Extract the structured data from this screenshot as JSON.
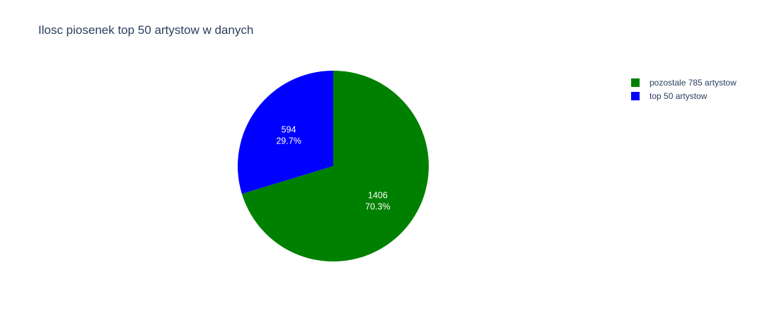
{
  "chart_data": {
    "type": "pie",
    "title": "Ilosc piosenek top 50 artystow w danych",
    "slices": [
      {
        "label": "pozostale 785 artystow",
        "value": 1406,
        "value_text": "1406",
        "percent_text": "70.3%",
        "color": "#008000"
      },
      {
        "label": "top 50 artystow",
        "value": 594,
        "value_text": "594",
        "percent_text": "29.7%",
        "color": "#0000ff"
      }
    ],
    "legend_position": "top-right",
    "start_angle_deg": 90,
    "direction": "clockwise"
  }
}
